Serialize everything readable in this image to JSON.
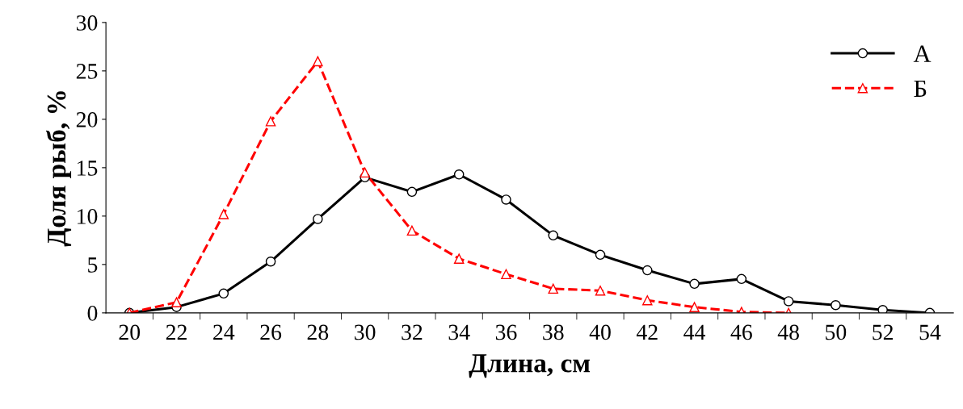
{
  "chart_data": {
    "type": "line",
    "xlabel": "Длина, см",
    "ylabel": "Доля рыб, %",
    "categories": [
      "20",
      "22",
      "24",
      "26",
      "28",
      "30",
      "32",
      "34",
      "36",
      "38",
      "40",
      "42",
      "44",
      "46",
      "48",
      "50",
      "52",
      "54"
    ],
    "series": [
      {
        "name": "А",
        "color": "#000000",
        "marker": "circle",
        "line_style": "solid",
        "values": [
          0,
          0.6,
          2,
          5.3,
          9.7,
          14,
          12.5,
          14.3,
          11.7,
          8,
          6,
          4.4,
          3,
          3.5,
          1.2,
          0.8,
          0.3,
          0
        ]
      },
      {
        "name": "Б",
        "color": "#ff0000",
        "marker": "triangle",
        "line_style": "dashed",
        "values": [
          0,
          1.1,
          10.2,
          19.8,
          26,
          14.5,
          8.5,
          5.6,
          4,
          2.5,
          2.3,
          1.3,
          0.6,
          0.1,
          0,
          null,
          null,
          null
        ]
      }
    ],
    "ylim": [
      0,
      30
    ],
    "yticks": [
      0,
      5,
      10,
      15,
      20,
      25,
      30
    ],
    "grid": false,
    "legend": "top right"
  }
}
